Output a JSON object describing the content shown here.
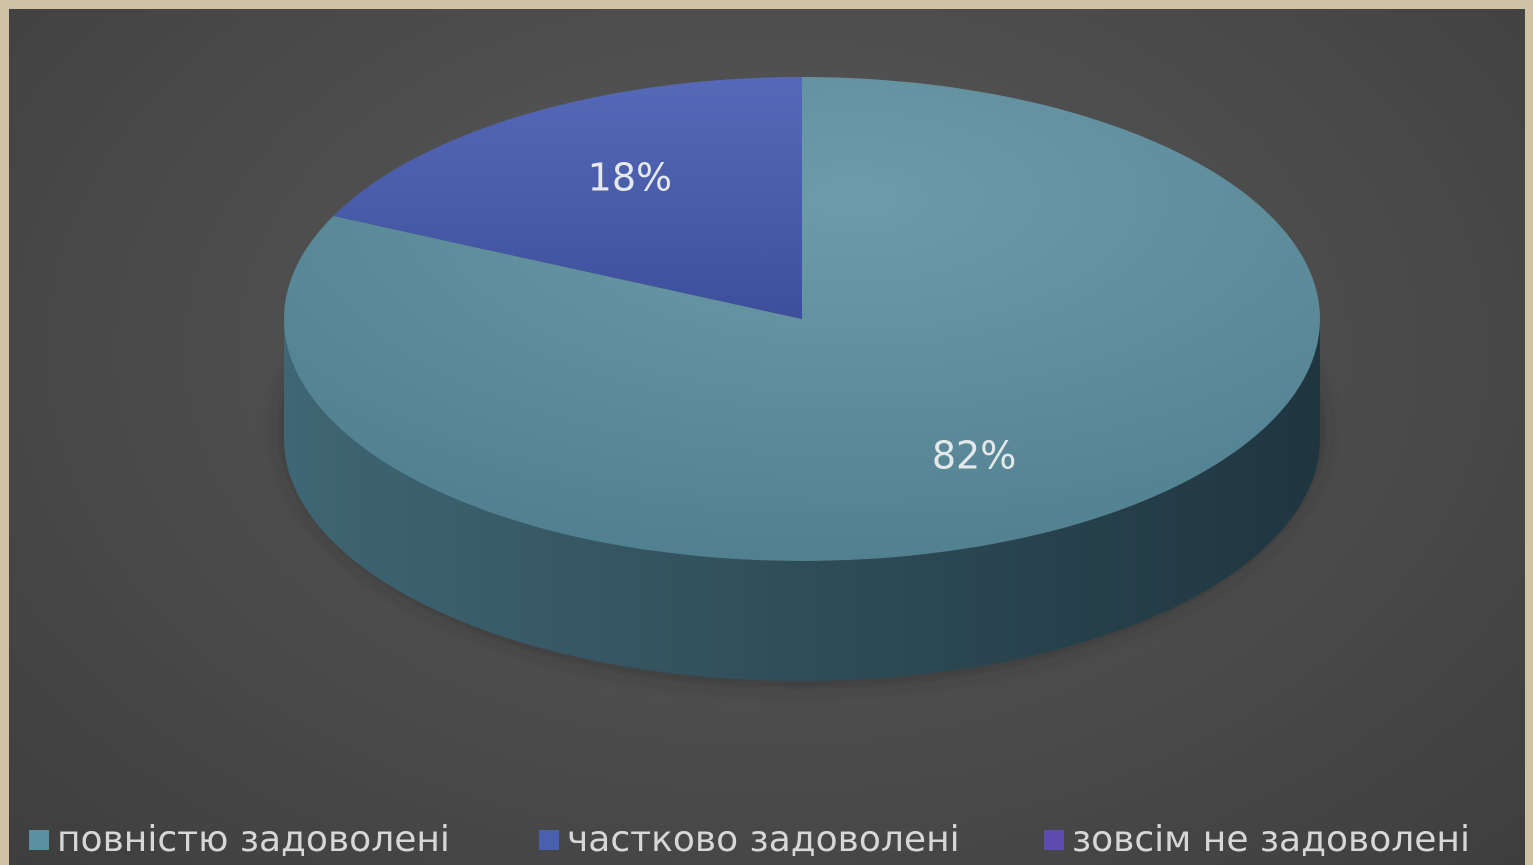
{
  "chart_data": {
    "type": "pie",
    "style": "3d",
    "title": "",
    "categories": [
      "повністю задоволені",
      "частково задоволені",
      "зовсім не задоволені"
    ],
    "values": [
      82,
      18,
      0
    ],
    "data_labels": [
      "82%",
      "18%",
      ""
    ],
    "colors": [
      "#5a8fa0",
      "#4a5fae",
      "#5e4bb0"
    ],
    "legend_position": "bottom"
  }
}
